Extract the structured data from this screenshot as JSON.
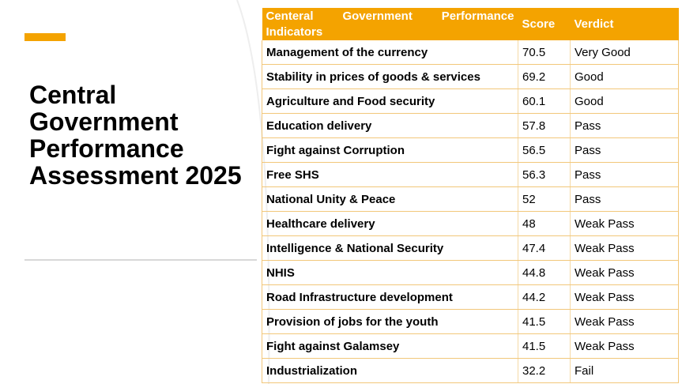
{
  "slide": {
    "title": "Central Government Performance Assessment 2025",
    "accent_color": "#f4a300"
  },
  "table": {
    "headers": {
      "indicator": "Centeral Government Performance Indicators",
      "score": "Score",
      "verdict": "Verdict"
    },
    "rows": [
      {
        "indicator": "Management of the currency",
        "score": "70.5",
        "verdict": "Very Good"
      },
      {
        "indicator": "Stability in prices of goods & services",
        "score": "69.2",
        "verdict": "Good"
      },
      {
        "indicator": "Agriculture and Food security",
        "score": "60.1",
        "verdict": "Good"
      },
      {
        "indicator": "Education delivery",
        "score": "57.8",
        "verdict": "Pass"
      },
      {
        "indicator": "Fight against Corruption",
        "score": "56.5",
        "verdict": "Pass"
      },
      {
        "indicator": "Free SHS",
        "score": "56.3",
        "verdict": "Pass"
      },
      {
        "indicator": "National Unity & Peace",
        "score": "52",
        "verdict": "Pass"
      },
      {
        "indicator": "Healthcare delivery",
        "score": "48",
        "verdict": "Weak Pass"
      },
      {
        "indicator": "Intelligence & National Security",
        "score": "47.4",
        "verdict": "Weak Pass"
      },
      {
        "indicator": "NHIS",
        "score": "44.8",
        "verdict": "Weak Pass"
      },
      {
        "indicator": "Road Infrastructure development",
        "score": "44.2",
        "verdict": "Weak Pass"
      },
      {
        "indicator": "Provision of jobs for the youth",
        "score": "41.5",
        "verdict": "Weak Pass"
      },
      {
        "indicator": "Fight against Galamsey",
        "score": "41.5",
        "verdict": "Weak Pass"
      },
      {
        "indicator": "Industrialization",
        "score": "32.2",
        "verdict": "Fail"
      }
    ]
  }
}
